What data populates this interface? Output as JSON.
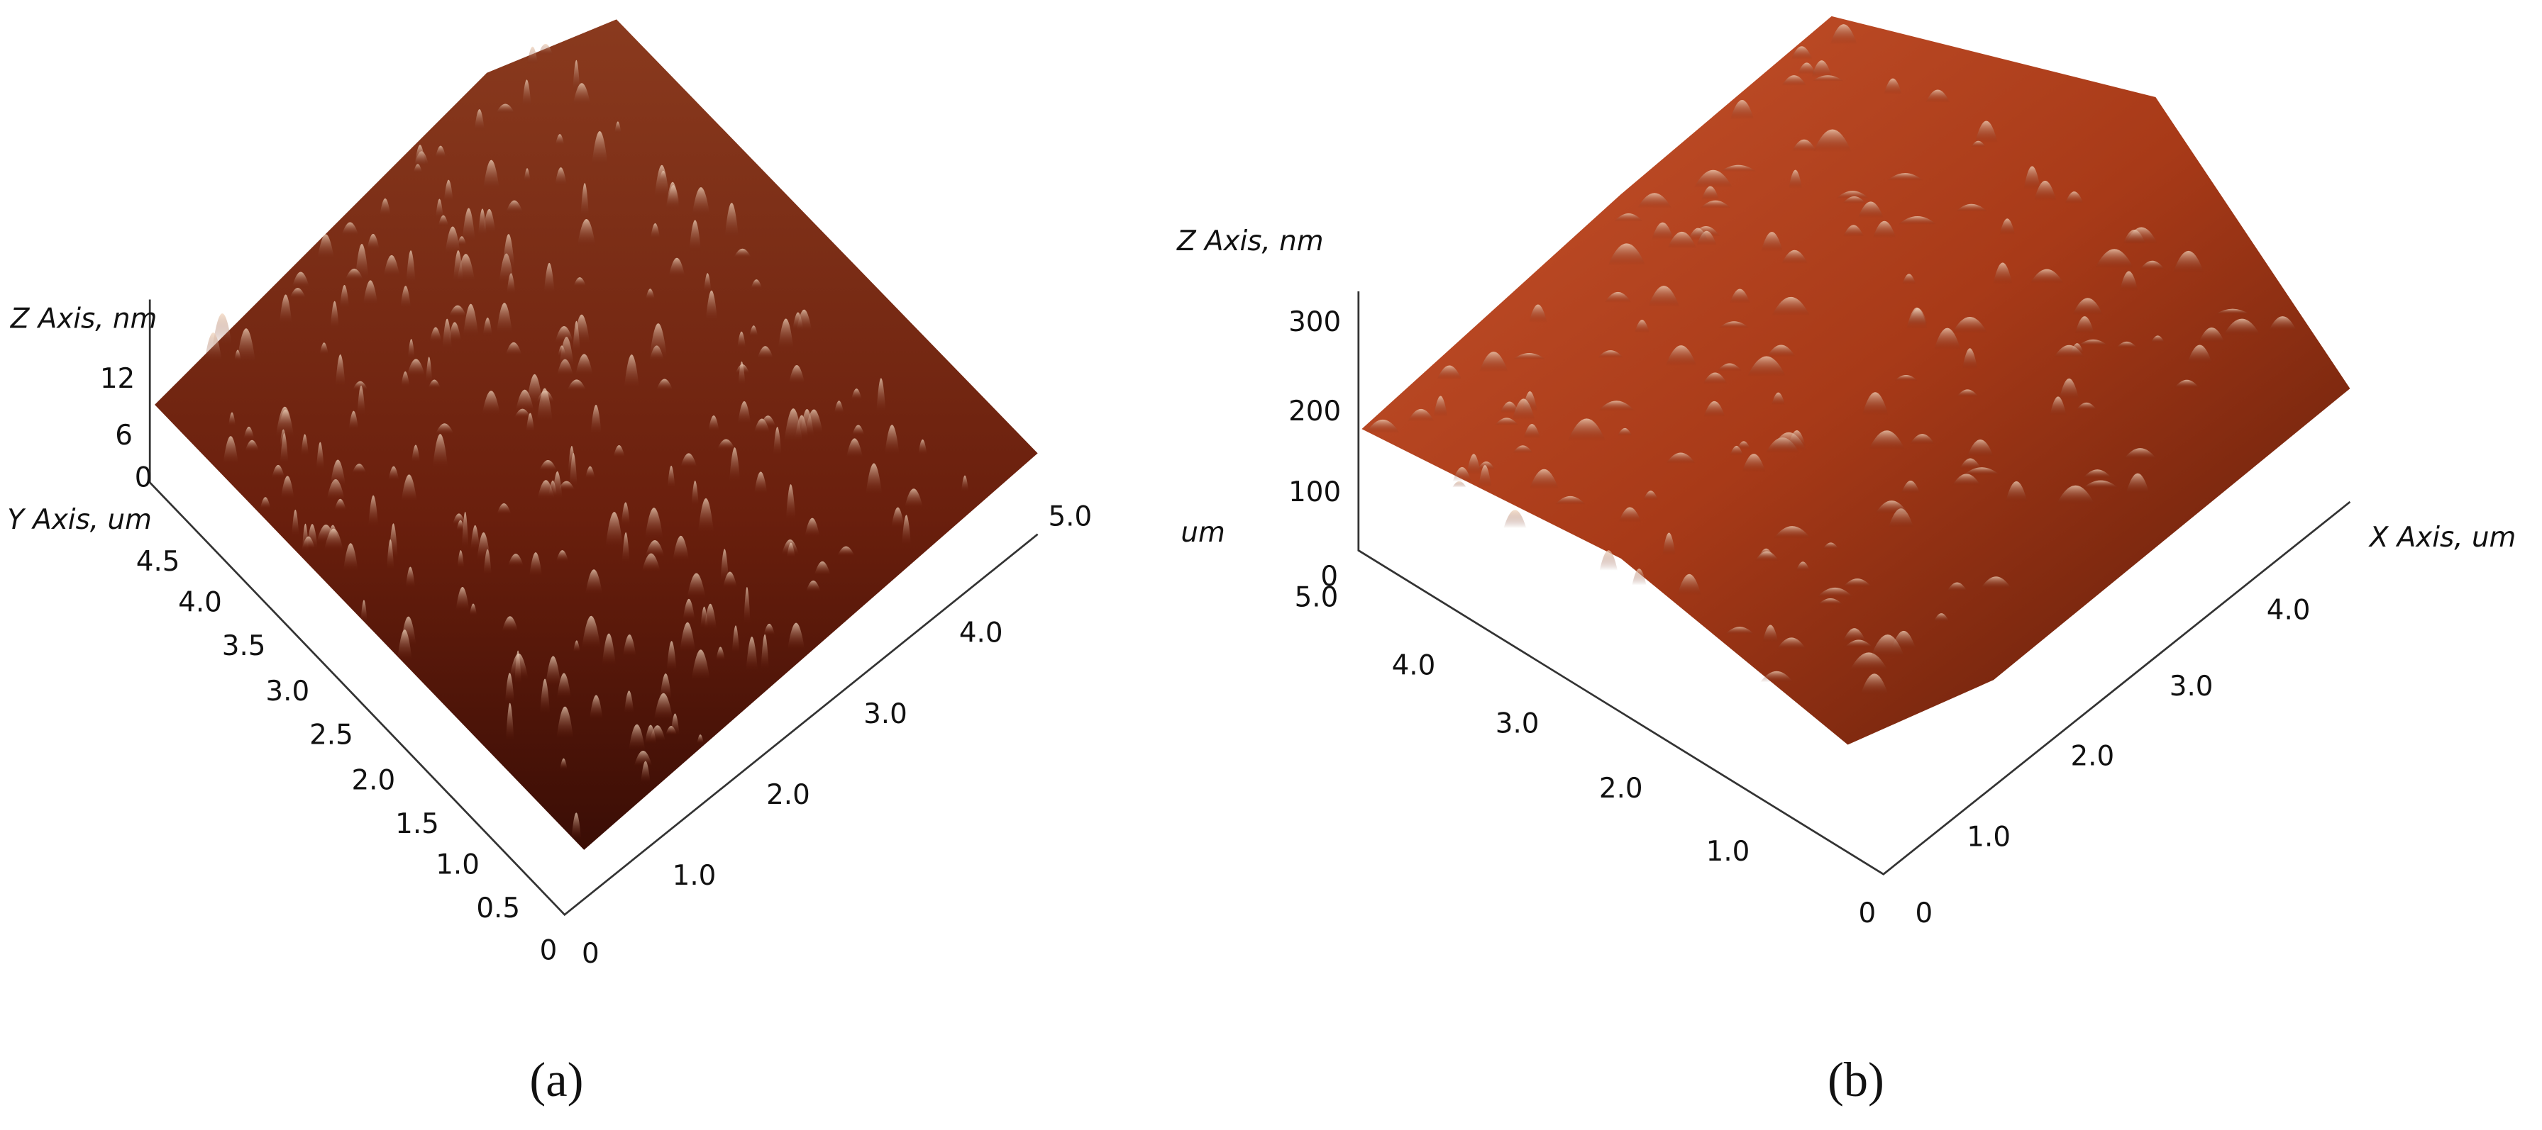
{
  "panels": [
    {
      "z_axis_label": "Z Axis, nm",
      "z_ticks": [
        "12",
        "6",
        "0"
      ],
      "y_axis_label": "Y Axis, um",
      "y_ticks": [
        "4.5",
        "4.0",
        "3.5",
        "3.0",
        "2.5",
        "2.0",
        "1.5",
        "1.0",
        "0.5",
        "0"
      ],
      "x_ticks": [
        "0",
        "1.0",
        "2.0",
        "3.0",
        "4.0",
        "5.0"
      ],
      "caption": "(a)"
    },
    {
      "z_axis_label": "Z Axis, nm",
      "z_ticks": [
        "300",
        "200",
        "100",
        "0"
      ],
      "unit_label": "um",
      "y_ticks": [
        "5.0",
        "4.0",
        "3.0",
        "2.0",
        "1.0",
        "0"
      ],
      "x_axis_label": "X Axis, um",
      "x_ticks": [
        "0",
        "1.0",
        "2.0",
        "3.0",
        "4.0"
      ],
      "caption": "(b)"
    }
  ]
}
